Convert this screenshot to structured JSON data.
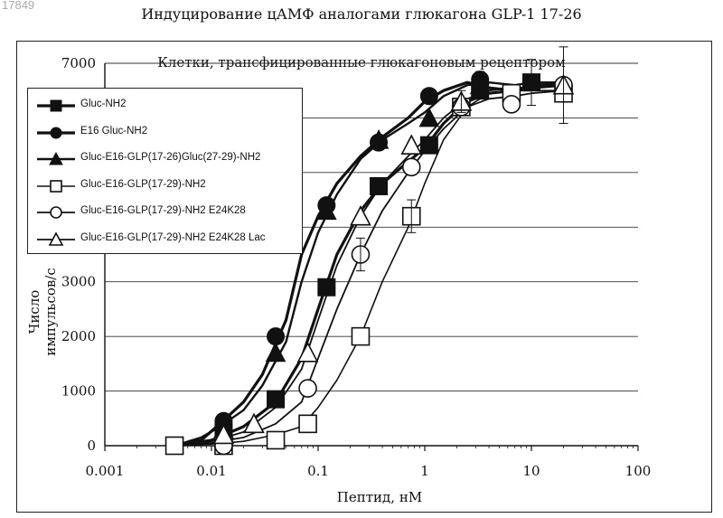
{
  "figure_number": "17849",
  "page_title": "Индуцирование цАМФ аналогами глюкагона GLP-1 17-26",
  "chart_data": {
    "type": "line",
    "title": "Клетки, трансфицированные глюкагоновым рецептором",
    "xlabel": "Пептид, нМ",
    "ylabel": "Число импульсов/с",
    "x_scale": "log",
    "xlim": [
      0.001,
      100
    ],
    "ylim": [
      0,
      7000
    ],
    "x_ticks": [
      "0.001",
      "0.01",
      "0.1",
      "1",
      "10",
      "100"
    ],
    "y_ticks": [
      "0",
      "1000",
      "2000",
      "3000",
      "4000",
      "5000",
      "6000",
      "7000"
    ],
    "grid": "horizontal",
    "legend_position": "top-left",
    "series": [
      {
        "name": "Gluc-NH2",
        "marker": "square-filled",
        "x": [
          0.0045,
          0.013,
          0.04,
          0.12,
          0.37,
          1.1,
          3.3,
          10
        ],
        "y": [
          0,
          250,
          850,
          2900,
          4750,
          5500,
          6500,
          6650
        ],
        "curve_x": [
          0.0045,
          0.01,
          0.02,
          0.04,
          0.07,
          0.1,
          0.15,
          0.25,
          0.4,
          0.7,
          1.0,
          1.5,
          2.5,
          4,
          7,
          10,
          20
        ],
        "curve_y": [
          0,
          100,
          350,
          800,
          1600,
          2500,
          3500,
          4300,
          4800,
          5200,
          5450,
          5900,
          6300,
          6450,
          6500,
          6550,
          6600
        ]
      },
      {
        "name": "E16 Gluc-NH2",
        "marker": "circle-filled",
        "x": [
          0.013,
          0.04,
          0.12,
          0.37,
          1.1,
          3.3
        ],
        "y": [
          450,
          2000,
          4400,
          5550,
          6400,
          6700
        ],
        "curve_x": [
          0.0045,
          0.008,
          0.012,
          0.02,
          0.03,
          0.05,
          0.07,
          0.1,
          0.15,
          0.25,
          0.4,
          0.7,
          1.0,
          1.5,
          2.5,
          4,
          7,
          10,
          20
        ],
        "curve_y": [
          0,
          100,
          400,
          800,
          1300,
          2300,
          3500,
          4200,
          4800,
          5300,
          5650,
          6000,
          6300,
          6500,
          6650,
          6550,
          6500,
          6600,
          6620
        ]
      },
      {
        "name": "Gluc-E16-GLP(17-26)Gluc(27-29)-NH2",
        "marker": "triangle-filled",
        "x": [
          0.013,
          0.04,
          0.12,
          0.37,
          1.1,
          3.3
        ],
        "y": [
          300,
          1700,
          4300,
          5600,
          6000,
          6600
        ],
        "curve_x": [
          0.0045,
          0.008,
          0.012,
          0.02,
          0.03,
          0.05,
          0.07,
          0.1,
          0.15,
          0.25,
          0.4,
          0.7,
          1.0,
          1.5,
          2.5,
          4,
          7,
          10,
          20
        ],
        "curve_y": [
          0,
          150,
          350,
          650,
          1100,
          1900,
          3000,
          3900,
          4600,
          5250,
          5600,
          5900,
          6100,
          6400,
          6600,
          6650,
          6600,
          6650,
          6650
        ]
      },
      {
        "name": "Gluc-E16-GLP(17-29)-NH2",
        "marker": "square-open",
        "x": [
          0.0045,
          0.013,
          0.04,
          0.08,
          0.25,
          0.75,
          2.2,
          6.5,
          20
        ],
        "y": [
          0,
          0,
          100,
          400,
          2000,
          4200,
          6200,
          6450,
          6450
        ],
        "curve_x": [
          0.0045,
          0.01,
          0.02,
          0.04,
          0.07,
          0.1,
          0.15,
          0.25,
          0.4,
          0.7,
          1.0,
          1.5,
          2.5,
          4,
          7,
          10,
          20
        ],
        "curve_y": [
          0,
          30,
          80,
          200,
          350,
          700,
          1200,
          2000,
          3000,
          4000,
          4800,
          5600,
          6200,
          6450,
          6500,
          6500,
          6500
        ]
      },
      {
        "name": "Gluc-E16-GLP(17-29)-NH2 E24K28",
        "marker": "circle-open",
        "x": [
          0.013,
          0.08,
          0.25,
          0.75,
          2.2,
          6.5,
          20
        ],
        "y": [
          0,
          1050,
          3500,
          5100,
          6200,
          6250,
          6600
        ],
        "curve_x": [
          0.0045,
          0.01,
          0.02,
          0.04,
          0.07,
          0.1,
          0.15,
          0.25,
          0.4,
          0.7,
          1.0,
          1.5,
          2.5,
          4,
          7,
          10,
          20
        ],
        "curve_y": [
          0,
          50,
          150,
          400,
          800,
          1600,
          2500,
          3500,
          4300,
          5000,
          5400,
          5800,
          6200,
          6350,
          6400,
          6450,
          6500
        ]
      },
      {
        "name": "Gluc-E16-GLP(17-29)-NH2 E24K28 Lac",
        "marker": "triangle-open",
        "x": [
          0.013,
          0.025,
          0.08,
          0.25,
          0.75,
          2.2,
          20
        ],
        "y": [
          200,
          400,
          1700,
          4200,
          5500,
          6300,
          6600
        ],
        "curve_x": [
          0.0045,
          0.01,
          0.02,
          0.04,
          0.07,
          0.1,
          0.15,
          0.25,
          0.4,
          0.7,
          1.0,
          1.5,
          2.5,
          4,
          7,
          10,
          20
        ],
        "curve_y": [
          0,
          80,
          250,
          700,
          1400,
          2300,
          3300,
          4200,
          4800,
          5300,
          5600,
          6000,
          6350,
          6500,
          6550,
          6550,
          6600
        ]
      }
    ]
  }
}
